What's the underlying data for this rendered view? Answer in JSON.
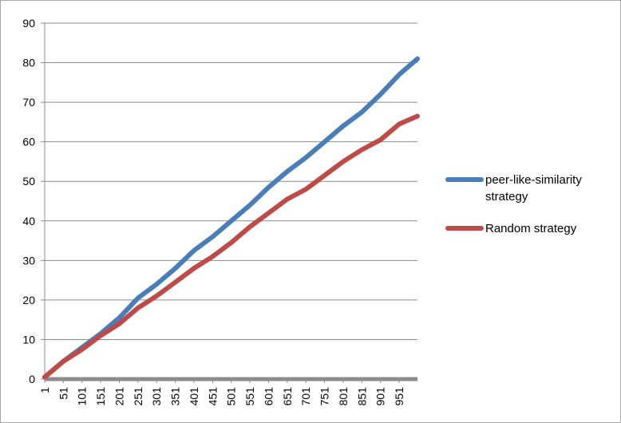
{
  "chart_data": {
    "type": "line",
    "title": "",
    "xlabel": "",
    "ylabel": "",
    "ylim": [
      0,
      90
    ],
    "y_ticks": [
      0,
      10,
      20,
      30,
      40,
      50,
      60,
      70,
      80,
      90
    ],
    "x_range": [
      1,
      1000
    ],
    "x_ticks": [
      1,
      51,
      101,
      151,
      201,
      251,
      301,
      351,
      401,
      451,
      501,
      551,
      601,
      651,
      701,
      751,
      801,
      851,
      901,
      951
    ],
    "grid": "horizontal",
    "legend_position": "right",
    "series": [
      {
        "name": "peer-like-similarity strategy",
        "color": "#4a7ebb",
        "x": [
          1,
          51,
          101,
          151,
          201,
          251,
          301,
          351,
          401,
          451,
          501,
          551,
          601,
          651,
          701,
          751,
          801,
          851,
          901,
          951,
          1000
        ],
        "values": [
          0.5,
          4.5,
          8,
          11.5,
          15.5,
          20.5,
          24,
          28,
          32.5,
          36,
          40,
          44,
          48.5,
          52.5,
          56,
          60,
          64,
          67.5,
          72,
          77,
          81
        ]
      },
      {
        "name": "Random strategy",
        "color": "#be4b48",
        "x": [
          1,
          51,
          101,
          151,
          201,
          251,
          301,
          351,
          401,
          451,
          501,
          551,
          601,
          651,
          701,
          751,
          801,
          851,
          901,
          951,
          1000
        ],
        "values": [
          0.5,
          4.5,
          7.5,
          11,
          14,
          18,
          21,
          24.5,
          28,
          31,
          34.5,
          38.5,
          42,
          45.5,
          48,
          51.5,
          55,
          58,
          60.5,
          64.5,
          66.5
        ]
      }
    ]
  }
}
